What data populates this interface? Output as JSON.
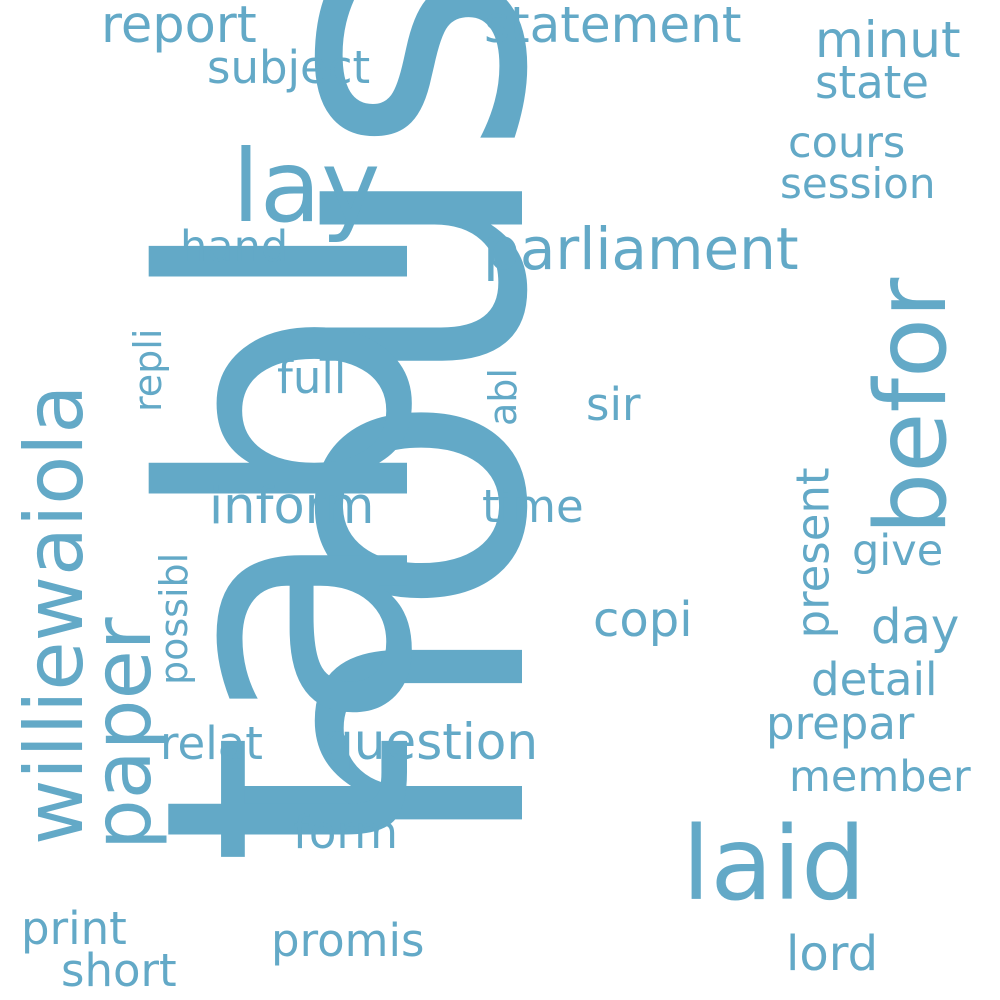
{
  "color": "#63a9c7",
  "words": [
    {
      "text": "hous",
      "rotate": -90
    },
    {
      "text": "tabl",
      "rotate": -90
    },
    {
      "text": "williewaiola",
      "rotate": -90
    },
    {
      "text": "paper",
      "rotate": -90
    },
    {
      "text": "befor",
      "rotate": -90
    },
    {
      "text": "lay",
      "rotate": 0
    },
    {
      "text": "laid",
      "rotate": 0
    },
    {
      "text": "parliament",
      "rotate": 0
    },
    {
      "text": "report",
      "rotate": 0
    },
    {
      "text": "statement",
      "rotate": 0
    },
    {
      "text": "subject",
      "rotate": 0
    },
    {
      "text": "minut",
      "rotate": 0
    },
    {
      "text": "state",
      "rotate": 0
    },
    {
      "text": "cours",
      "rotate": 0
    },
    {
      "text": "session",
      "rotate": 0
    },
    {
      "text": "hand",
      "rotate": 0
    },
    {
      "text": "repli",
      "rotate": -90
    },
    {
      "text": "full",
      "rotate": 0
    },
    {
      "text": "abl",
      "rotate": -90
    },
    {
      "text": "sir",
      "rotate": 0
    },
    {
      "text": "inform",
      "rotate": 0
    },
    {
      "text": "time",
      "rotate": 0
    },
    {
      "text": "present",
      "rotate": -90
    },
    {
      "text": "possibl",
      "rotate": -90
    },
    {
      "text": "give",
      "rotate": 0
    },
    {
      "text": "copi",
      "rotate": 0
    },
    {
      "text": "day",
      "rotate": 0
    },
    {
      "text": "detail",
      "rotate": 0
    },
    {
      "text": "prepar",
      "rotate": 0
    },
    {
      "text": "relat",
      "rotate": 0
    },
    {
      "text": "question",
      "rotate": 0
    },
    {
      "text": "member",
      "rotate": 0
    },
    {
      "text": "form",
      "rotate": 0
    },
    {
      "text": "print",
      "rotate": 0
    },
    {
      "text": "short",
      "rotate": 0
    },
    {
      "text": "promis",
      "rotate": 0
    },
    {
      "text": "lord",
      "rotate": 0
    }
  ]
}
